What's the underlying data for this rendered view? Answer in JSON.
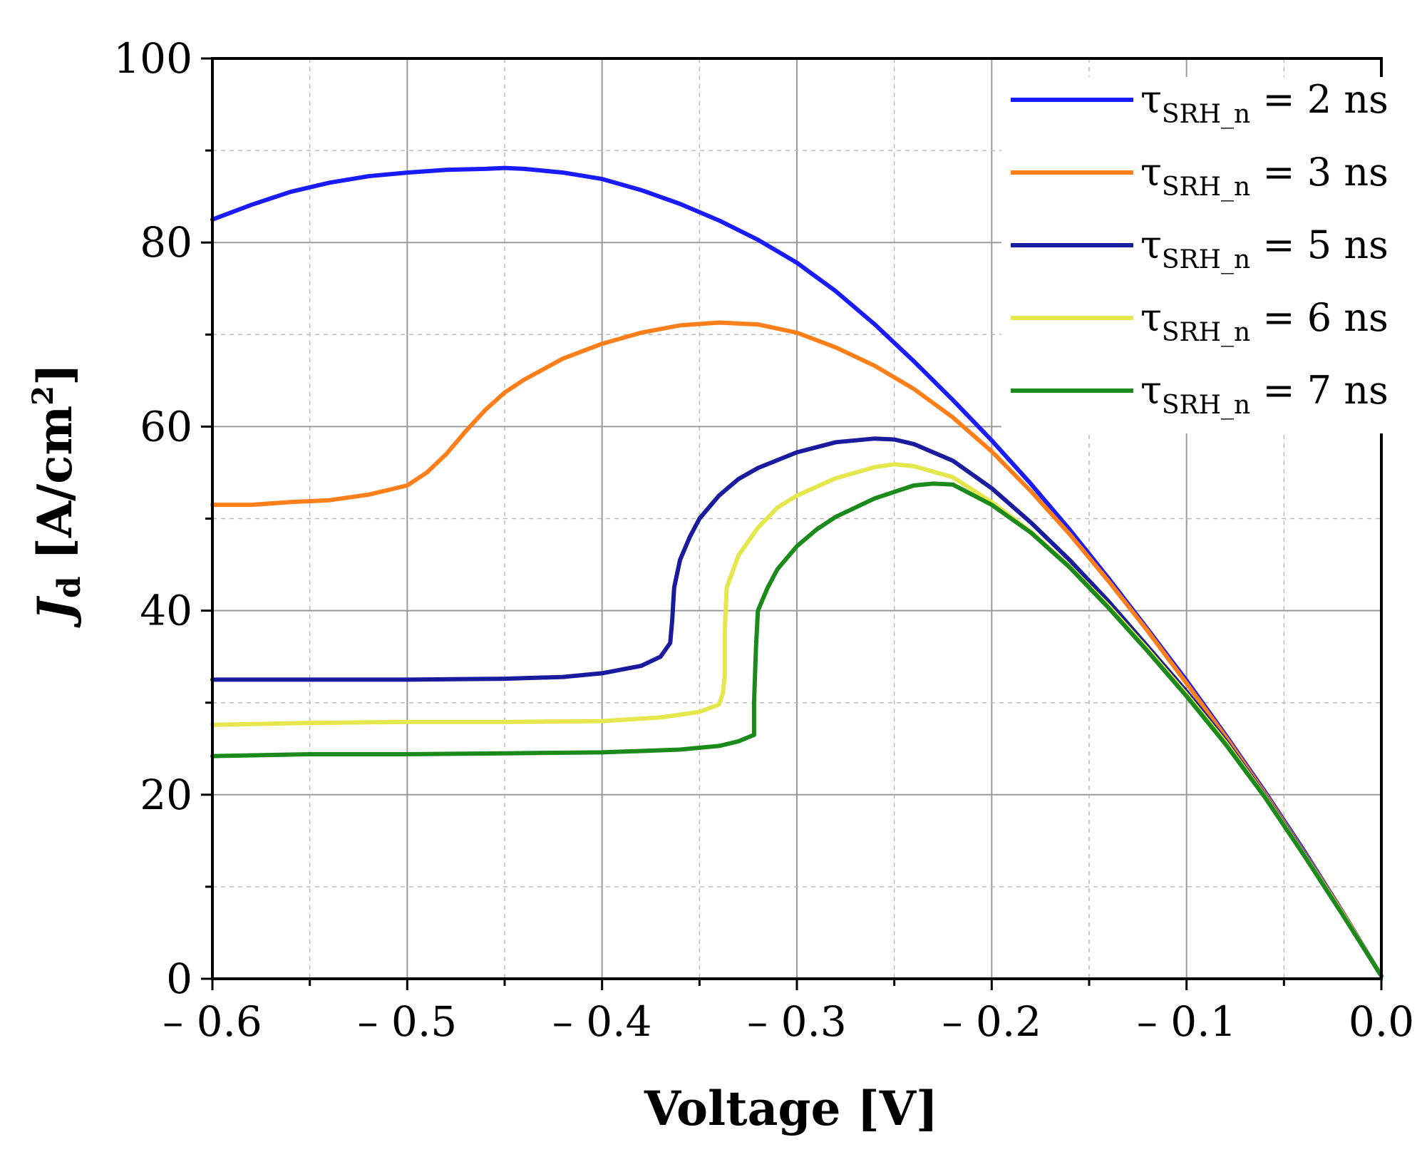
{
  "chart_data": {
    "type": "line",
    "title": "",
    "xlabel": "Voltage [V]",
    "ylabel": {
      "main": "J",
      "sub": "d",
      "unit_prefix": " [A/cm",
      "unit_sup": "2",
      "unit_suffix": "]"
    },
    "xlim": [
      -0.6,
      0.0
    ],
    "ylim": [
      0,
      100
    ],
    "x_ticks": [
      -0.6,
      -0.5,
      -0.4,
      -0.3,
      -0.2,
      -0.1,
      0.0
    ],
    "x_tick_labels": [
      "– 0.6",
      "– 0.5",
      "– 0.4",
      "– 0.3",
      "– 0.2",
      "– 0.1",
      "0.0"
    ],
    "y_ticks": [
      0,
      20,
      40,
      60,
      80,
      100
    ],
    "y_tick_labels": [
      "0",
      "20",
      "40",
      "60",
      "80",
      "100"
    ],
    "grid": true,
    "legend_position": "top-right",
    "series": [
      {
        "name": "τSRH_n = 2 ns",
        "label_parts": {
          "symbol": "τ",
          "sub": "SRH_n",
          "rest": " = 2 ns"
        },
        "color": "#1a1aff",
        "points": [
          [
            -0.6,
            82.5
          ],
          [
            -0.58,
            84.1
          ],
          [
            -0.56,
            85.5
          ],
          [
            -0.54,
            86.5
          ],
          [
            -0.52,
            87.2
          ],
          [
            -0.5,
            87.6
          ],
          [
            -0.48,
            87.9
          ],
          [
            -0.46,
            88.0
          ],
          [
            -0.45,
            88.1
          ],
          [
            -0.44,
            88.0
          ],
          [
            -0.42,
            87.6
          ],
          [
            -0.4,
            86.9
          ],
          [
            -0.38,
            85.7
          ],
          [
            -0.36,
            84.2
          ],
          [
            -0.34,
            82.4
          ],
          [
            -0.32,
            80.3
          ],
          [
            -0.3,
            77.8
          ],
          [
            -0.28,
            74.7
          ],
          [
            -0.26,
            71.1
          ],
          [
            -0.24,
            67.1
          ],
          [
            -0.22,
            62.9
          ],
          [
            -0.2,
            58.5
          ],
          [
            -0.18,
            53.8
          ],
          [
            -0.16,
            48.8
          ],
          [
            -0.14,
            43.5
          ],
          [
            -0.12,
            38.0
          ],
          [
            -0.1,
            32.4
          ],
          [
            -0.08,
            26.5
          ],
          [
            -0.06,
            20.4
          ],
          [
            -0.04,
            14.0
          ],
          [
            -0.02,
            7.3
          ],
          [
            0.0,
            0.3
          ]
        ]
      },
      {
        "name": "τSRH_n = 3 ns",
        "label_parts": {
          "symbol": "τ",
          "sub": "SRH_n",
          "rest": " = 3 ns"
        },
        "color": "#ff7f1a",
        "points": [
          [
            -0.6,
            51.5
          ],
          [
            -0.58,
            51.5
          ],
          [
            -0.56,
            51.8
          ],
          [
            -0.54,
            52.0
          ],
          [
            -0.52,
            52.6
          ],
          [
            -0.5,
            53.6
          ],
          [
            -0.49,
            55.0
          ],
          [
            -0.48,
            57.0
          ],
          [
            -0.47,
            59.5
          ],
          [
            -0.46,
            61.8
          ],
          [
            -0.45,
            63.7
          ],
          [
            -0.44,
            65.1
          ],
          [
            -0.42,
            67.4
          ],
          [
            -0.4,
            69.0
          ],
          [
            -0.38,
            70.2
          ],
          [
            -0.36,
            71.0
          ],
          [
            -0.34,
            71.3
          ],
          [
            -0.32,
            71.1
          ],
          [
            -0.3,
            70.2
          ],
          [
            -0.28,
            68.6
          ],
          [
            -0.26,
            66.6
          ],
          [
            -0.24,
            64.1
          ],
          [
            -0.22,
            61.0
          ],
          [
            -0.2,
            57.3
          ],
          [
            -0.18,
            53.0
          ],
          [
            -0.16,
            48.3
          ],
          [
            -0.14,
            43.2
          ],
          [
            -0.12,
            37.8
          ],
          [
            -0.1,
            32.1
          ],
          [
            -0.08,
            26.3
          ],
          [
            -0.06,
            20.2
          ],
          [
            -0.04,
            13.8
          ],
          [
            -0.02,
            7.2
          ],
          [
            0.0,
            0.3
          ]
        ]
      },
      {
        "name": "τSRH_n = 5 ns",
        "label_parts": {
          "symbol": "τ",
          "sub": "SRH_n",
          "rest": " = 5 ns"
        },
        "color": "#1a1a9e",
        "points": [
          [
            -0.6,
            32.5
          ],
          [
            -0.55,
            32.5
          ],
          [
            -0.5,
            32.5
          ],
          [
            -0.45,
            32.6
          ],
          [
            -0.42,
            32.8
          ],
          [
            -0.4,
            33.2
          ],
          [
            -0.38,
            34.0
          ],
          [
            -0.37,
            35.0
          ],
          [
            -0.365,
            36.5
          ],
          [
            -0.364,
            39.0
          ],
          [
            -0.363,
            42.5
          ],
          [
            -0.36,
            45.5
          ],
          [
            -0.355,
            48.0
          ],
          [
            -0.35,
            50.0
          ],
          [
            -0.34,
            52.5
          ],
          [
            -0.33,
            54.3
          ],
          [
            -0.32,
            55.5
          ],
          [
            -0.3,
            57.2
          ],
          [
            -0.28,
            58.3
          ],
          [
            -0.26,
            58.7
          ],
          [
            -0.25,
            58.6
          ],
          [
            -0.24,
            58.1
          ],
          [
            -0.22,
            56.3
          ],
          [
            -0.2,
            53.3
          ],
          [
            -0.18,
            49.6
          ],
          [
            -0.16,
            45.5
          ],
          [
            -0.14,
            41.0
          ],
          [
            -0.12,
            36.1
          ],
          [
            -0.1,
            31.2
          ],
          [
            -0.08,
            25.9
          ],
          [
            -0.06,
            20.0
          ],
          [
            -0.04,
            13.7
          ],
          [
            -0.02,
            7.1
          ],
          [
            0.0,
            0.3
          ]
        ]
      },
      {
        "name": "τSRH_n = 6 ns",
        "label_parts": {
          "symbol": "τ",
          "sub": "SRH_n",
          "rest": " = 6 ns"
        },
        "color": "#e6e64d",
        "points": [
          [
            -0.6,
            27.6
          ],
          [
            -0.55,
            27.8
          ],
          [
            -0.5,
            27.9
          ],
          [
            -0.45,
            27.9
          ],
          [
            -0.4,
            28.0
          ],
          [
            -0.37,
            28.4
          ],
          [
            -0.35,
            29.0
          ],
          [
            -0.34,
            29.8
          ],
          [
            -0.338,
            31.0
          ],
          [
            -0.337,
            33.0
          ],
          [
            -0.337,
            38.0
          ],
          [
            -0.336,
            42.5
          ],
          [
            -0.33,
            46.0
          ],
          [
            -0.32,
            49.0
          ],
          [
            -0.31,
            51.2
          ],
          [
            -0.3,
            52.5
          ],
          [
            -0.28,
            54.4
          ],
          [
            -0.26,
            55.6
          ],
          [
            -0.25,
            55.9
          ],
          [
            -0.24,
            55.7
          ],
          [
            -0.22,
            54.5
          ],
          [
            -0.2,
            51.8
          ],
          [
            -0.18,
            48.6
          ],
          [
            -0.16,
            44.8
          ],
          [
            -0.14,
            40.5
          ],
          [
            -0.12,
            35.8
          ],
          [
            -0.1,
            30.9
          ],
          [
            -0.08,
            25.7
          ],
          [
            -0.06,
            19.9
          ],
          [
            -0.04,
            13.6
          ],
          [
            -0.02,
            7.1
          ],
          [
            0.0,
            0.3
          ]
        ]
      },
      {
        "name": "τSRH_n = 7 ns",
        "label_parts": {
          "symbol": "τ",
          "sub": "SRH_n",
          "rest": " = 7 ns"
        },
        "color": "#1a8a1a",
        "points": [
          [
            -0.6,
            24.2
          ],
          [
            -0.55,
            24.4
          ],
          [
            -0.5,
            24.4
          ],
          [
            -0.45,
            24.5
          ],
          [
            -0.4,
            24.6
          ],
          [
            -0.36,
            24.9
          ],
          [
            -0.34,
            25.3
          ],
          [
            -0.33,
            25.8
          ],
          [
            -0.322,
            26.5
          ],
          [
            -0.322,
            30.0
          ],
          [
            -0.321,
            36.0
          ],
          [
            -0.32,
            40.0
          ],
          [
            -0.315,
            42.5
          ],
          [
            -0.31,
            44.5
          ],
          [
            -0.3,
            47.0
          ],
          [
            -0.29,
            48.8
          ],
          [
            -0.28,
            50.2
          ],
          [
            -0.26,
            52.2
          ],
          [
            -0.24,
            53.6
          ],
          [
            -0.23,
            53.8
          ],
          [
            -0.22,
            53.7
          ],
          [
            -0.2,
            51.5
          ],
          [
            -0.18,
            48.5
          ],
          [
            -0.16,
            44.7
          ],
          [
            -0.14,
            40.3
          ],
          [
            -0.12,
            35.6
          ],
          [
            -0.1,
            30.7
          ],
          [
            -0.08,
            25.5
          ],
          [
            -0.06,
            19.8
          ],
          [
            -0.04,
            13.5
          ],
          [
            -0.02,
            7.0
          ],
          [
            0.0,
            0.3
          ]
        ]
      }
    ]
  }
}
